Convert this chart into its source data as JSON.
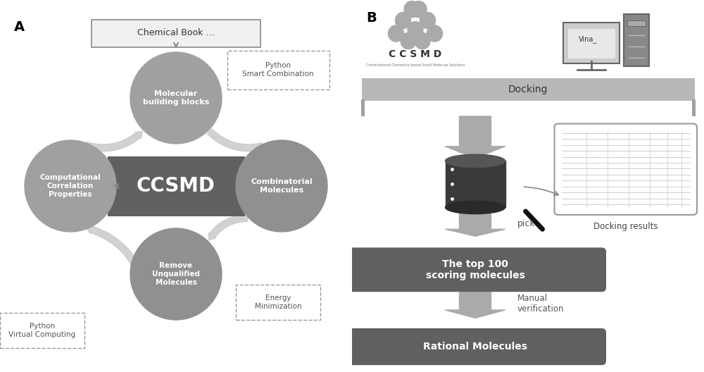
{
  "bg_color": "#ffffff",
  "panel_A_label": "A",
  "panel_B_label": "B",
  "circle_color_top": "#a0a0a0",
  "circle_color_right": "#909090",
  "circle_color_bottom": "#909090",
  "circle_color_left": "#a0a0a0",
  "circle_text_color": "#ffffff",
  "ccsmd_box_color": "#606060",
  "ccsmd_text": "CCSMD",
  "ccsmd_text_color": "#ffffff",
  "chemical_book_text": "Chemical Book …",
  "arrow_color": "#cccccc",
  "B_docking_bar_color": "#b0b0b0",
  "B_docking_text": "Docking",
  "B_box1_color": "#606060",
  "B_box1_text": "The top 100\nscoring molecules",
  "B_box2_color": "#606060",
  "B_box2_text": "Rational Molecules",
  "B_pick_text": "pick",
  "B_manual_text": "Manual\nverification",
  "B_docking_results_text": "Docking results",
  "B_ccsmd_sub": "Combinatorial Chemistry-based Small Molecule Solutions"
}
